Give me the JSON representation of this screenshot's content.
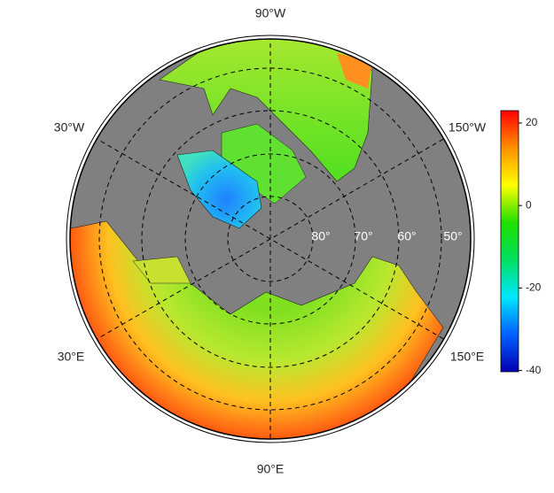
{
  "map": {
    "type": "polar-map",
    "longitude_labels": [
      "90°W",
      "30°W",
      "150°W",
      "30°E",
      "150°E",
      "90°E"
    ],
    "latitude_labels": [
      "80°",
      "70°",
      "60°",
      "50°"
    ],
    "colorbar": {
      "lim": [
        -40.3,
        23
      ],
      "ticks": [
        20,
        0,
        -20,
        -40
      ],
      "colors": [
        "#0000b0",
        "#0060ff",
        "#00e8ff",
        "#00e060",
        "#20e000",
        "#ffff00",
        "#ff9000",
        "#ff0000"
      ]
    }
  }
}
